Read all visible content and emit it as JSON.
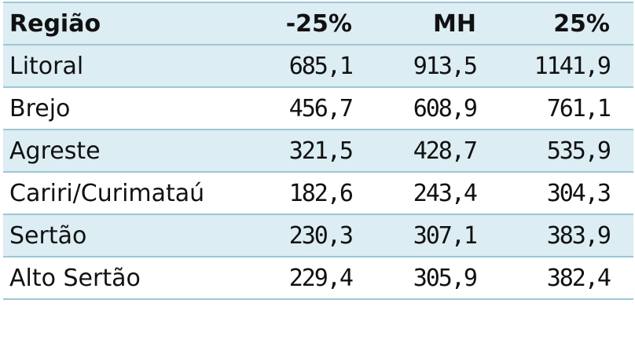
{
  "table": {
    "headers": [
      "Região",
      "-25%",
      "MH",
      "25%"
    ],
    "rows": [
      [
        "Litoral",
        "685,1",
        "913,5",
        "1141,9"
      ],
      [
        "Brejo",
        "456,7",
        "608,9",
        "761,1"
      ],
      [
        "Agreste",
        "321,5",
        "428,7",
        "535,9"
      ],
      [
        "Cariri/Curimataú",
        "182,6",
        "243,4",
        "304,3"
      ],
      [
        "Sertão",
        "230,3",
        "307,1",
        "383,9"
      ],
      [
        "Alto Sertão",
        "229,4",
        "305,9",
        "382,4"
      ]
    ],
    "colors": {
      "row_shade": "#dcedf3",
      "border": "#9cc7d6",
      "text": "#111111"
    }
  }
}
